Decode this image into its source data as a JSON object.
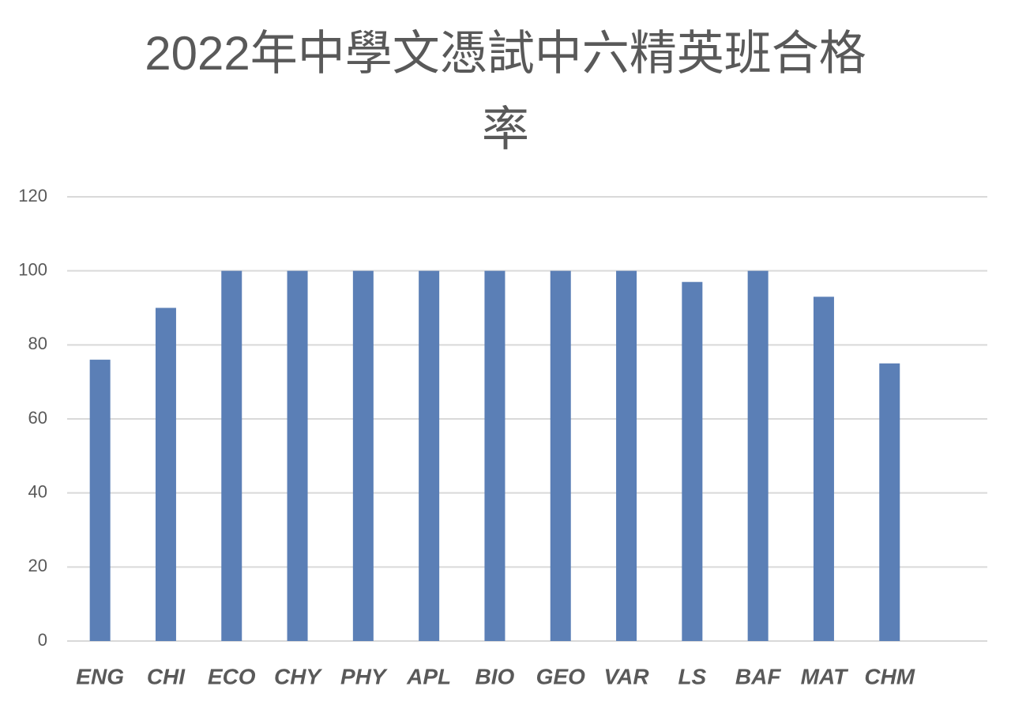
{
  "chart_data": {
    "type": "bar",
    "title": "2022年中學文憑試中六精英班合格率",
    "categories": [
      "ENG",
      "CHI",
      "ECO",
      "CHY",
      "PHY",
      "APL",
      "BIO",
      "GEO",
      "VAR",
      "LS",
      "BAF",
      "MAT",
      "CHM"
    ],
    "values": [
      76,
      90,
      100,
      100,
      100,
      100,
      100,
      100,
      100,
      97,
      100,
      93,
      75
    ],
    "color": "#5b7fb6",
    "ylim": [
      0,
      120
    ],
    "yticks": [
      0,
      20,
      40,
      60,
      80,
      100,
      120
    ],
    "grid": true
  }
}
